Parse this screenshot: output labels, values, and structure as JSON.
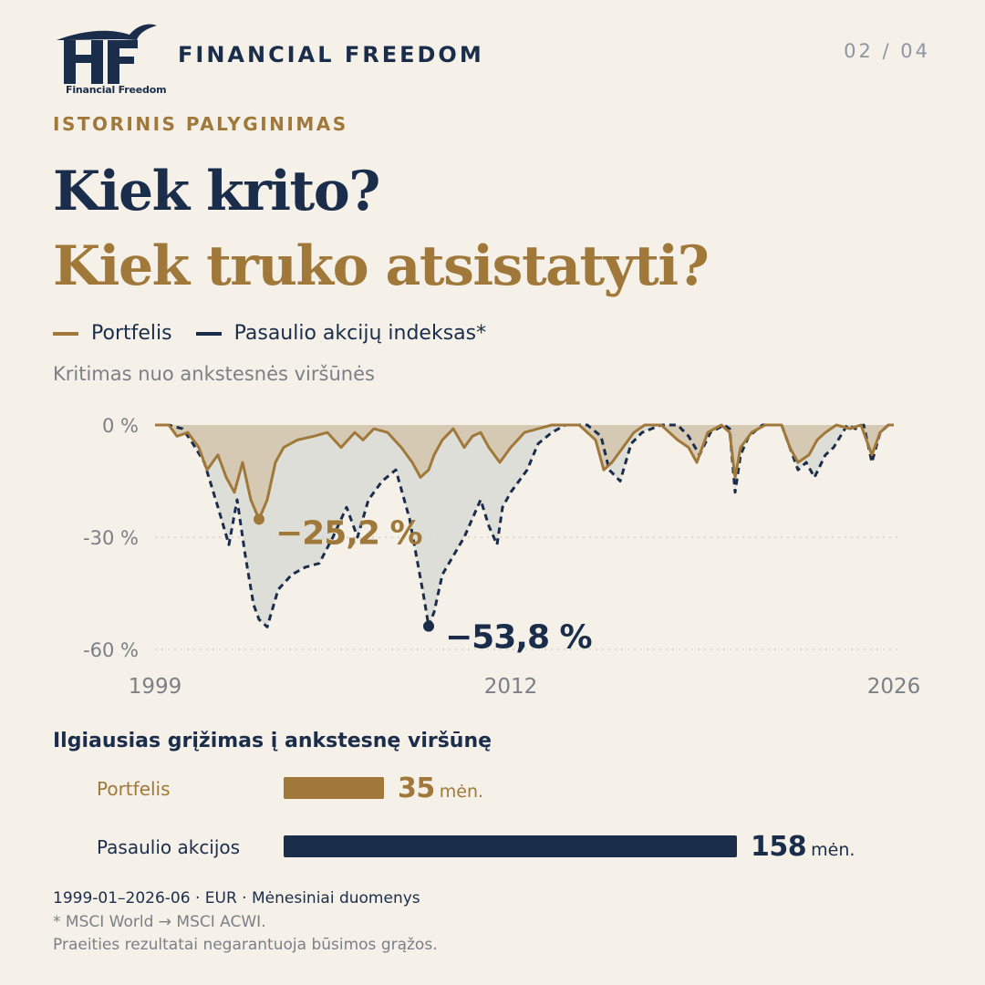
{
  "brand": {
    "name": "FINANCIAL FREEDOM",
    "logo_caption": "Financial Freedom",
    "logo_icon": "ff-eagle-logo-icon"
  },
  "page_indicator": "02 / 04",
  "kicker": "ISTORINIS PALYGINIMAS",
  "title_line1": "Kiek krito?",
  "title_line2": "Kiek truko atsistatyti?",
  "colors": {
    "background": "#f5f0e8",
    "navy": "#1a2e4c",
    "gold": "#a0793a",
    "muted": "#7c7f86"
  },
  "legend": [
    {
      "label": "Portfelis",
      "color": "#a0793a"
    },
    {
      "label": "Pasaulio akcijų indeksas*",
      "color": "#1a2e4c"
    }
  ],
  "chart_subtitle": "Kritimas nuo ankstesnės viršūnės",
  "chart_data": {
    "type": "area",
    "ylim": [
      -60,
      0
    ],
    "y_ticks": [
      0,
      -30,
      -60
    ],
    "y_tick_labels": [
      "0 %",
      "-30 %",
      "-60 %"
    ],
    "xlim": [
      1999,
      2026
    ],
    "x_ticks": [
      1999,
      2012,
      2026
    ],
    "x_tick_labels": [
      "1999",
      "2012",
      "2026"
    ],
    "grid": true,
    "series": [
      {
        "name": "Pasaulio akcijų indeksas*",
        "style": "dashed",
        "color": "#1a2e4c",
        "x": [
          1999.0,
          1999.5,
          2000.0,
          2000.3,
          2000.8,
          2001.3,
          2001.7,
          2002.0,
          2002.3,
          2002.6,
          2002.8,
          2003.1,
          2003.5,
          2004.0,
          2004.5,
          2005.0,
          2005.5,
          2006.0,
          2006.4,
          2006.8,
          2007.3,
          2007.8,
          2008.3,
          2008.8,
          2009.0,
          2009.2,
          2009.5,
          2009.9,
          2010.3,
          2010.6,
          2010.9,
          2011.2,
          2011.5,
          2011.7,
          2012.0,
          2012.3,
          2012.6,
          2013.0,
          2013.5,
          2014.0,
          2014.8,
          2015.3,
          2015.6,
          2016.0,
          2016.4,
          2016.8,
          2017.5,
          2018.1,
          2018.5,
          2018.9,
          2019.3,
          2019.8,
          2020.0,
          2020.2,
          2020.4,
          2020.7,
          2021.2,
          2021.9,
          2022.2,
          2022.5,
          2022.8,
          2023.1,
          2023.5,
          2023.8,
          2024.3,
          2024.6,
          2024.9,
          2025.2,
          2025.5,
          2025.8,
          2026.0
        ],
        "values": [
          0,
          0,
          -1,
          -4,
          -10,
          -22,
          -32,
          -20,
          -35,
          -48,
          -52,
          -54,
          -44,
          -40,
          -38,
          -37,
          -30,
          -22,
          -30,
          -20,
          -15,
          -12,
          -25,
          -45,
          -53.8,
          -50,
          -40,
          -35,
          -30,
          -25,
          -20,
          -27,
          -32,
          -22,
          -18,
          -15,
          -12,
          -5,
          -2,
          0,
          0,
          -3,
          -12,
          -15,
          -5,
          -2,
          0,
          0,
          -3,
          -8,
          -2,
          0,
          -1,
          -18,
          -8,
          -3,
          0,
          0,
          -6,
          -12,
          -10,
          -14,
          -8,
          -6,
          0,
          -1,
          0,
          -10,
          -2,
          0,
          0
        ]
      },
      {
        "name": "Portfelis",
        "style": "solid",
        "color": "#a0793a",
        "x": [
          1999.0,
          1999.5,
          1999.8,
          2000.2,
          2000.6,
          2000.9,
          2001.3,
          2001.6,
          2001.9,
          2002.2,
          2002.5,
          2002.8,
          2003.1,
          2003.4,
          2003.7,
          2004.2,
          2004.8,
          2005.3,
          2005.8,
          2006.3,
          2006.6,
          2007.0,
          2007.5,
          2008.0,
          2008.4,
          2008.7,
          2009.0,
          2009.2,
          2009.5,
          2009.9,
          2010.3,
          2010.6,
          2010.9,
          2011.2,
          2011.6,
          2012.0,
          2012.5,
          2013.0,
          2013.5,
          2014.0,
          2014.5,
          2015.1,
          2015.4,
          2015.7,
          2016.1,
          2016.5,
          2016.9,
          2017.5,
          2018.1,
          2018.5,
          2018.8,
          2019.2,
          2019.7,
          2020.0,
          2020.2,
          2020.4,
          2020.8,
          2021.3,
          2021.9,
          2022.2,
          2022.5,
          2022.9,
          2023.2,
          2023.5,
          2023.9,
          2024.4,
          2024.8,
          2025.2,
          2025.5,
          2025.8,
          2026.0
        ],
        "values": [
          0,
          0,
          -3,
          -2,
          -6,
          -12,
          -8,
          -14,
          -18,
          -10,
          -20,
          -25.2,
          -20,
          -10,
          -6,
          -4,
          -3,
          -2,
          -6,
          -2,
          -4,
          -1,
          -2,
          -6,
          -10,
          -14,
          -12,
          -8,
          -4,
          -1,
          -6,
          -3,
          -2,
          -6,
          -10,
          -6,
          -2,
          -1,
          0,
          0,
          0,
          -4,
          -12,
          -10,
          -6,
          -2,
          0,
          0,
          -4,
          -6,
          -10,
          -2,
          0,
          -2,
          -14,
          -6,
          -2,
          0,
          0,
          -6,
          -10,
          -8,
          -4,
          -2,
          0,
          -1,
          0,
          -8,
          -2,
          0,
          0
        ]
      }
    ],
    "annotations": [
      {
        "series": "Portfelis",
        "x": 2002.8,
        "y": -25.2,
        "label": "−25,2 %"
      },
      {
        "series": "Pasaulio akcijų indeksas*",
        "x": 2009.0,
        "y": -53.8,
        "label": "−53,8 %"
      }
    ]
  },
  "recovery": {
    "title": "Ilgiausias grįžimas į ankstesnę viršūnę",
    "unit": "mėn.",
    "bars": [
      {
        "label": "Portfelis",
        "value": 35,
        "color": "#a0793a"
      },
      {
        "label": "Pasaulio akcijos",
        "value": 158,
        "color": "#1a2e4c"
      }
    ]
  },
  "footnotes": {
    "line1": "1999-01–2026-06 · EUR · Mėnesiniai duomenys",
    "line2": "* MSCI World → MSCI ACWI.",
    "line3": "Praeities rezultatai negarantuoja būsimos grąžos."
  }
}
